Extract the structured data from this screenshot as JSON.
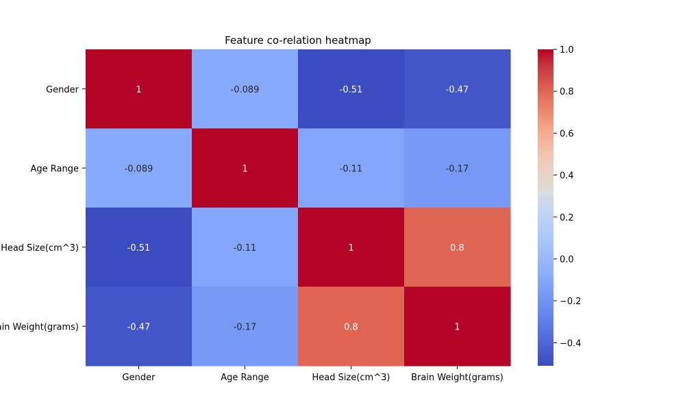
{
  "chart_data": {
    "type": "heatmap",
    "title": "Feature co-relation heatmap",
    "xlabel": "",
    "ylabel": "",
    "x_categories": [
      "Gender",
      "Age Range",
      "Head Size(cm^3)",
      "Brain Weight(grams)"
    ],
    "y_categories": [
      "Gender",
      "Age Range",
      "Head Size(cm^3)",
      "Brain Weight(grams)"
    ],
    "values": [
      [
        1,
        -0.089,
        -0.51,
        -0.47
      ],
      [
        -0.089,
        1,
        -0.11,
        -0.17
      ],
      [
        -0.51,
        -0.11,
        1,
        0.8
      ],
      [
        -0.47,
        -0.17,
        0.8,
        1
      ]
    ],
    "cell_labels": [
      [
        "1",
        "-0.089",
        "-0.51",
        "-0.47"
      ],
      [
        "-0.089",
        "1",
        "-0.11",
        "-0.17"
      ],
      [
        "-0.51",
        "-0.11",
        "1",
        "0.8"
      ],
      [
        "-0.47",
        "-0.17",
        "0.8",
        "1"
      ]
    ],
    "colormap": "coolwarm",
    "color_range": [
      -0.51,
      1.0
    ],
    "colorbar_ticks": [
      1.0,
      0.8,
      0.6,
      0.4,
      0.2,
      0.0,
      -0.2,
      -0.4
    ],
    "colorbar_tick_labels": [
      "1.0",
      "0.8",
      "0.6",
      "0.4",
      "0.2",
      "0.0",
      "−0.2",
      "−0.4"
    ],
    "grid": false
  }
}
